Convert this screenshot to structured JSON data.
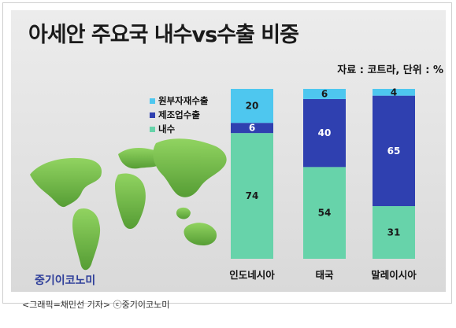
{
  "caption": "<그래픽=채민선 기자>   ⓒ중기이코노미",
  "brand": "중기이코노미",
  "colors": {
    "series": [
      "#67d3aa",
      "#2f40b0",
      "#4ec7ef"
    ]
  },
  "chart_data": {
    "type": "bar",
    "stacked": true,
    "title": "아세안 주요국 내수vs수출 비중",
    "subtitle": "자료 : 코트라, 단위 : %",
    "categories": [
      "인도네시아",
      "태국",
      "말레이시아"
    ],
    "series": [
      {
        "name": "내수",
        "values": [
          74,
          54,
          31
        ]
      },
      {
        "name": "제조업수출",
        "values": [
          6,
          40,
          65
        ]
      },
      {
        "name": "원부자재수출",
        "values": [
          20,
          6,
          4
        ]
      }
    ],
    "legend_order": [
      "원부자재수출",
      "제조업수출",
      "내수"
    ],
    "legend_position": "left",
    "ylim": [
      0,
      100
    ],
    "grid": false
  }
}
